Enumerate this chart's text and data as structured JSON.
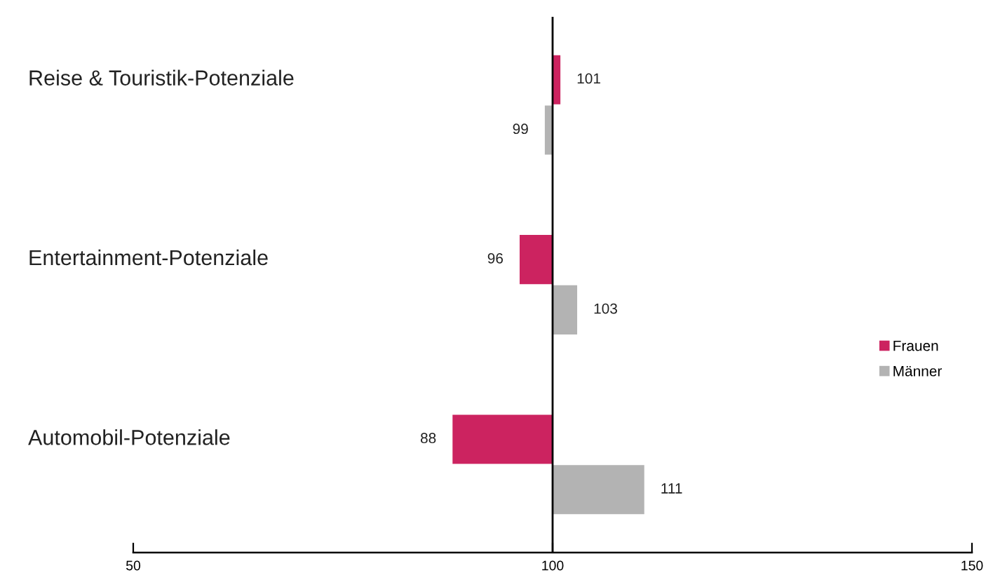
{
  "chart_data": {
    "type": "bar",
    "orientation": "horizontal",
    "categories": [
      "Reise & Touristik-Potenziale",
      "Entertainment-Potenziale",
      "Automobil-Potenziale"
    ],
    "series": [
      {
        "name": "Frauen",
        "color": "#cc2360",
        "base": [
          100,
          100,
          100
        ],
        "values": [
          1,
          -4,
          -12
        ],
        "value_labels": [
          "101",
          "96",
          "88"
        ]
      },
      {
        "name": "Männer",
        "color": "#b3b3b3",
        "base": [
          100,
          100,
          100
        ],
        "values": [
          -1,
          3,
          11
        ],
        "value_labels": [
          "99",
          "103",
          "111"
        ]
      }
    ],
    "xlim": [
      50,
      150
    ],
    "xticks": [
      50,
      100,
      150
    ],
    "ref_lines": [
      {
        "axis": "x",
        "value": 100,
        "color": "#000000"
      }
    ],
    "grid": false,
    "legend": "right"
  }
}
